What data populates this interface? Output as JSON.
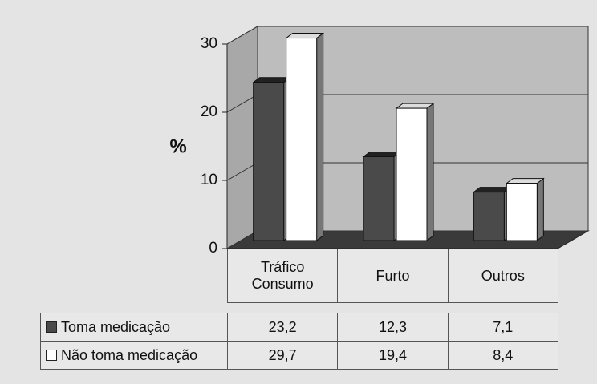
{
  "chart_data": {
    "type": "bar",
    "y_label": "%",
    "categories": [
      "Tráfico Consumo",
      "Furto",
      "Outros"
    ],
    "series": [
      {
        "name": "Toma medicação",
        "color": "#4a4a4a",
        "values": [
          23.2,
          12.3,
          7.1
        ],
        "value_labels": [
          "23,2",
          "12,3",
          "7,1"
        ]
      },
      {
        "name": "Não toma medicação",
        "color": "#ffffff",
        "values": [
          29.7,
          19.4,
          8.4
        ],
        "value_labels": [
          "29,7",
          "19,4",
          "8,4"
        ]
      }
    ],
    "ylim": [
      0,
      30
    ],
    "yticks": [
      0,
      10,
      20,
      30
    ],
    "grid": true,
    "legend": "table"
  }
}
